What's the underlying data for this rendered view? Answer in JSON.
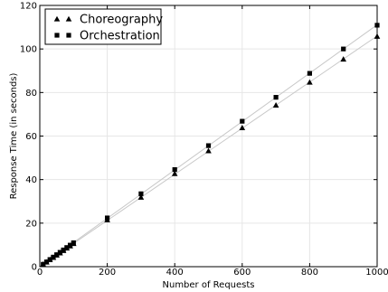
{
  "chart_data": {
    "type": "scatter",
    "title": "",
    "xlabel": "Number of Requests",
    "ylabel": "Response Time (in seconds)",
    "xlim": [
      0,
      1000
    ],
    "ylim": [
      0,
      120
    ],
    "xticks": [
      0,
      200,
      400,
      600,
      800,
      1000
    ],
    "yticks": [
      0,
      20,
      40,
      60,
      80,
      100,
      120
    ],
    "grid": true,
    "legend_position": "top-left",
    "trendlines": true,
    "trendline_color": "#c8c8c8",
    "series": [
      {
        "name": "Choreography",
        "marker": "triangle",
        "color": "#000000",
        "x": [
          10,
          20,
          30,
          40,
          50,
          60,
          70,
          80,
          90,
          100,
          200,
          300,
          400,
          500,
          600,
          700,
          800,
          900,
          1000
        ],
        "y": [
          1.1,
          2.1,
          3.2,
          4.2,
          5.3,
          6.3,
          7.4,
          8.5,
          9.5,
          10.6,
          21.5,
          31.9,
          42.7,
          53.2,
          63.8,
          74.2,
          84.7,
          95.3,
          105.8
        ]
      },
      {
        "name": "Orchestration",
        "marker": "square",
        "color": "#000000",
        "x": [
          10,
          20,
          30,
          40,
          50,
          60,
          70,
          80,
          90,
          100,
          200,
          300,
          400,
          500,
          600,
          700,
          800,
          900,
          1000
        ],
        "y": [
          1.1,
          2.2,
          3.3,
          4.4,
          5.5,
          6.6,
          7.7,
          8.8,
          9.9,
          11.0,
          22.4,
          33.5,
          44.6,
          55.6,
          66.8,
          77.8,
          88.8,
          100.0,
          110.9
        ]
      }
    ]
  }
}
